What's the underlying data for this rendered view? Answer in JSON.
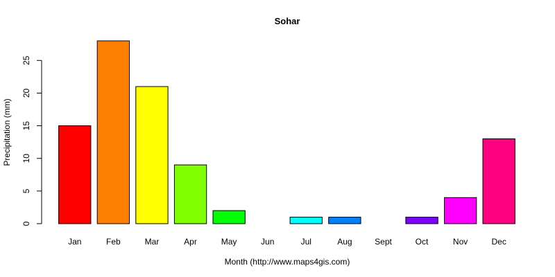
{
  "chart_data": {
    "type": "bar",
    "title": "Sohar",
    "xlabel": "Month (http://www.maps4gis.com)",
    "ylabel": "Precipitation (mm)",
    "categories": [
      "Jan",
      "Feb",
      "Mar",
      "Apr",
      "May",
      "Jun",
      "Jul",
      "Aug",
      "Sept",
      "Oct",
      "Nov",
      "Dec"
    ],
    "values": [
      15,
      28,
      21,
      9,
      2,
      0,
      1,
      1,
      0,
      1,
      4,
      13
    ],
    "colors": [
      "#FF0000",
      "#FF8000",
      "#FFFF00",
      "#80FF00",
      "#00FF00",
      "#00FF80",
      "#00FFFF",
      "#0080FF",
      "#0000FF",
      "#8000FF",
      "#FF00FF",
      "#FF0080"
    ],
    "ylim": [
      0,
      28
    ],
    "yticks": [
      0,
      5,
      10,
      15,
      20,
      25
    ],
    "grid": false,
    "legend": "none"
  }
}
